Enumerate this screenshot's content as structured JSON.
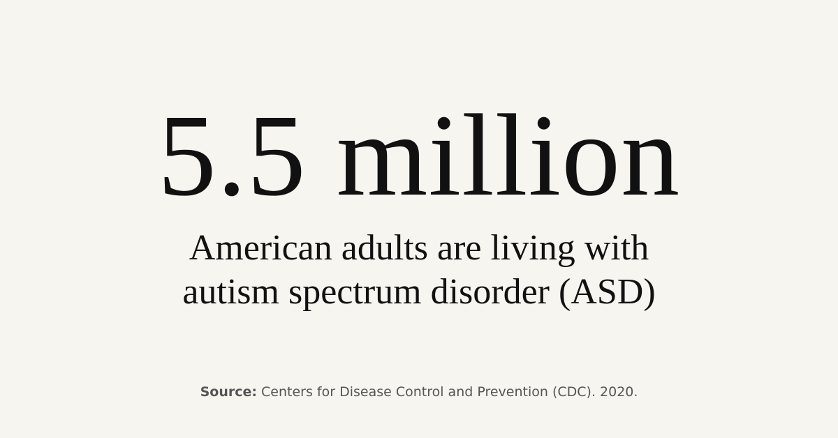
{
  "headline": "5.5 million",
  "subtitle": {
    "lines": [
      "American adults are living with",
      "autism spectrum disorder (ASD)"
    ]
  },
  "source": {
    "label": "Source:",
    "text": "Centers for Disease Control and Prevention (CDC). 2020."
  }
}
